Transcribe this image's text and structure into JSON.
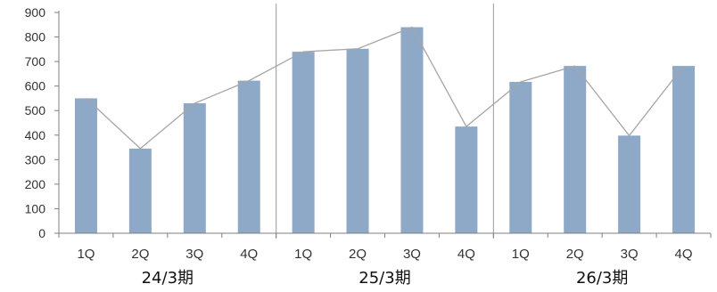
{
  "chart_data": {
    "type": "bar",
    "groups": [
      "24/3期",
      "25/3期",
      "26/3期"
    ],
    "quarters": [
      "1Q",
      "2Q",
      "3Q",
      "4Q"
    ],
    "categories": [
      "1Q",
      "2Q",
      "3Q",
      "4Q",
      "1Q",
      "2Q",
      "3Q",
      "4Q",
      "1Q",
      "2Q",
      "3Q",
      "4Q"
    ],
    "values": [
      550,
      345,
      530,
      622,
      740,
      752,
      840,
      435,
      617,
      682,
      398,
      682
    ],
    "y_ticks": [
      "0",
      "100",
      "200",
      "300",
      "400",
      "500",
      "600",
      "700",
      "800",
      "900"
    ],
    "ylim": [
      0,
      900
    ],
    "bar_color": "#8ea8c7",
    "line_color": "#a6a6a6",
    "overlay_line": true,
    "grid": false,
    "legend": "none"
  }
}
